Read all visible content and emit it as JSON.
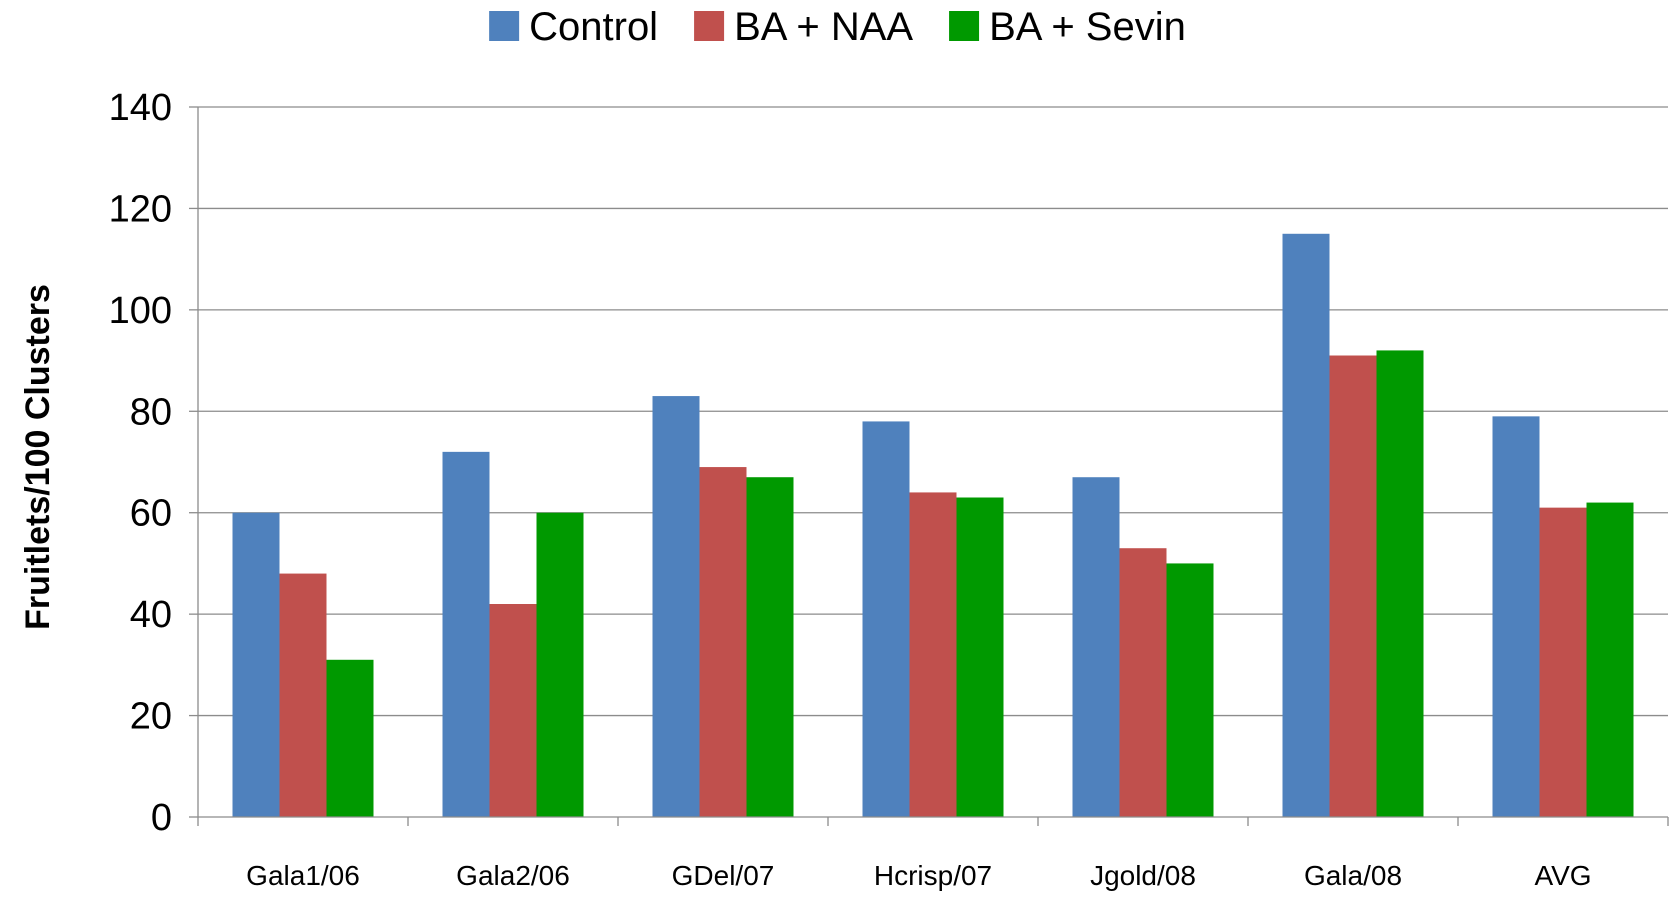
{
  "chart_data": {
    "type": "bar",
    "title": "",
    "xlabel": "",
    "ylabel": "Fruitlets/100 Clusters",
    "ylim": [
      0,
      140
    ],
    "yticks": [
      0,
      20,
      40,
      60,
      80,
      100,
      120,
      140
    ],
    "grid": true,
    "legend_position": "top",
    "categories": [
      "Gala1/06",
      "Gala2/06",
      "GDel/07",
      "Hcrisp/07",
      "Jgold/08",
      "Gala/08",
      "AVG"
    ],
    "series": [
      {
        "name": "Control",
        "color": "#4F81BD",
        "values": [
          60,
          72,
          83,
          78,
          67,
          115,
          79
        ]
      },
      {
        "name": "BA + NAA",
        "color": "#C0504D",
        "values": [
          48,
          42,
          69,
          64,
          53,
          91,
          61
        ]
      },
      {
        "name": "BA + Sevin",
        "color": "#009900",
        "values": [
          31,
          60,
          67,
          63,
          50,
          92,
          62
        ]
      }
    ]
  }
}
